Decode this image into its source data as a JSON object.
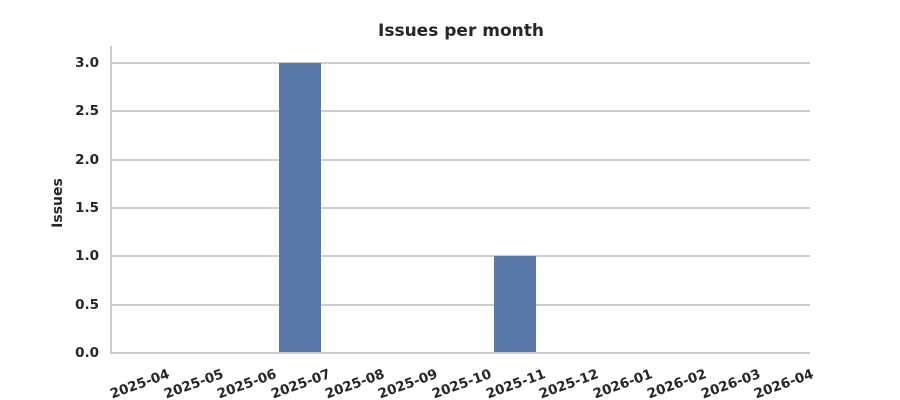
{
  "chart_data": {
    "type": "bar",
    "title": "Issues per month",
    "xlabel": "",
    "ylabel": "Issues",
    "categories": [
      "2025-04",
      "2025-05",
      "2025-06",
      "2025-07",
      "2025-08",
      "2025-09",
      "2025-10",
      "2025-11",
      "2025-12",
      "2026-01",
      "2026-02",
      "2026-03",
      "2026-04"
    ],
    "values": [
      0,
      0,
      0,
      3,
      0,
      0,
      0,
      1,
      0,
      0,
      0,
      0,
      0
    ],
    "ytick_labels": [
      "0.0",
      "0.5",
      "1.0",
      "1.5",
      "2.0",
      "2.5",
      "3.0"
    ],
    "ytick_values": [
      0,
      0.5,
      1,
      1.5,
      2,
      2.5,
      3
    ],
    "ylim": [
      0,
      3.18
    ],
    "grid": "horizontal",
    "legend": "none",
    "x_tick_rotation_deg": 20,
    "colors": {
      "bar": "#5878a8",
      "grid": "#cccccc",
      "spine": "#cccccc",
      "text": "#262626",
      "background": "#ffffff"
    }
  }
}
